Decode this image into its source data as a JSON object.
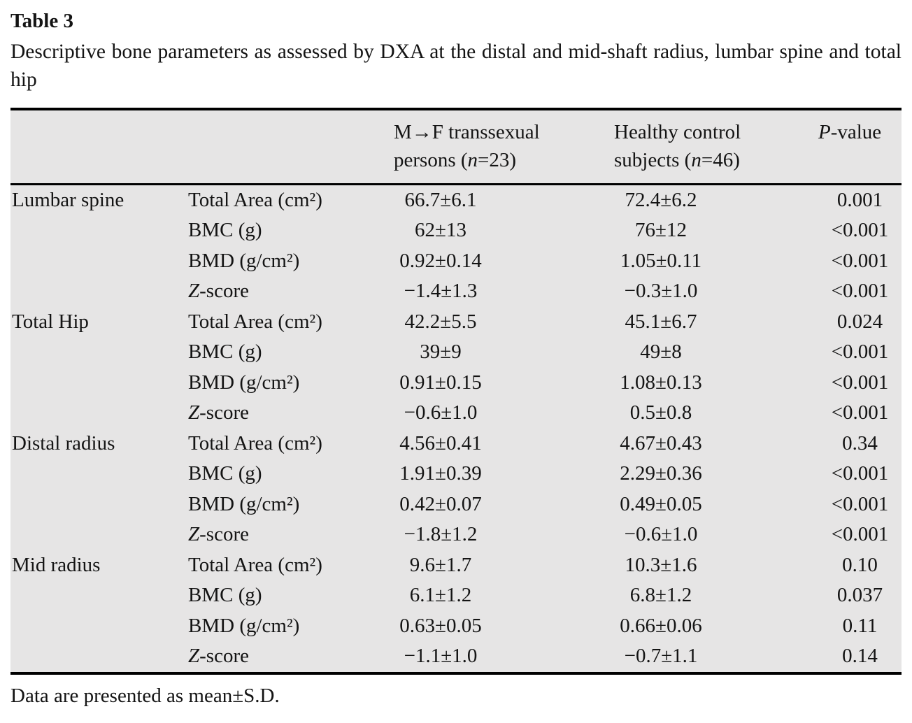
{
  "title": "Table 3",
  "caption": "Descriptive bone parameters as assessed by DXA at the distal and mid-shaft radius, lumbar spine and total hip",
  "footnote": "Data are presented as mean±S.D.",
  "colors": {
    "table_background": "#e6e5e5",
    "rule": "#000000",
    "text": "#141414"
  },
  "table": {
    "header": {
      "group1": {
        "line1": "M→F transsexual",
        "line2_pre": "persons (",
        "n": "n",
        "line2_post": "=23)"
      },
      "group2": {
        "line1": "Healthy control",
        "line2_pre": "subjects (",
        "n": "n",
        "line2_post": "=46)"
      },
      "pvalue_italic": "P",
      "pvalue_rest": "-value"
    },
    "rows": [
      {
        "region": "Lumbar spine",
        "param_italic": "",
        "param": "Total Area (cm²)",
        "group1": "66.7±6.1",
        "group2": "72.4±6.2",
        "pvalue": "0.001"
      },
      {
        "region": "",
        "param_italic": "",
        "param": "BMC (g)",
        "group1": "62±13",
        "group2": "76±12",
        "pvalue": "<0.001"
      },
      {
        "region": "",
        "param_italic": "",
        "param": "BMD (g/cm²)",
        "group1": "0.92±0.14",
        "group2": "1.05±0.11",
        "pvalue": "<0.001"
      },
      {
        "region": "",
        "param_italic": "Z",
        "param": "-score",
        "group1": "−1.4±1.3",
        "group2": "−0.3±1.0",
        "pvalue": "<0.001"
      },
      {
        "region": "Total Hip",
        "param_italic": "",
        "param": "Total Area (cm²)",
        "group1": "42.2±5.5",
        "group2": "45.1±6.7",
        "pvalue": "0.024"
      },
      {
        "region": "",
        "param_italic": "",
        "param": "BMC (g)",
        "group1": "39±9",
        "group2": "49±8",
        "pvalue": "<0.001"
      },
      {
        "region": "",
        "param_italic": "",
        "param": "BMD (g/cm²)",
        "group1": "0.91±0.15",
        "group2": "1.08±0.13",
        "pvalue": "<0.001"
      },
      {
        "region": "",
        "param_italic": "Z",
        "param": "-score",
        "group1": "−0.6±1.0",
        "group2": "0.5±0.8",
        "pvalue": "<0.001"
      },
      {
        "region": "Distal radius",
        "param_italic": "",
        "param": "Total Area (cm²)",
        "group1": "4.56±0.41",
        "group2": "4.67±0.43",
        "pvalue": "0.34"
      },
      {
        "region": "",
        "param_italic": "",
        "param": "BMC (g)",
        "group1": "1.91±0.39",
        "group2": "2.29±0.36",
        "pvalue": "<0.001"
      },
      {
        "region": "",
        "param_italic": "",
        "param": "BMD (g/cm²)",
        "group1": "0.42±0.07",
        "group2": "0.49±0.05",
        "pvalue": "<0.001"
      },
      {
        "region": "",
        "param_italic": "Z",
        "param": "-score",
        "group1": "−1.8±1.2",
        "group2": "−0.6±1.0",
        "pvalue": "<0.001"
      },
      {
        "region": "Mid radius",
        "param_italic": "",
        "param": "Total Area (cm²)",
        "group1": "9.6±1.7",
        "group2": "10.3±1.6",
        "pvalue": "0.10"
      },
      {
        "region": "",
        "param_italic": "",
        "param": "BMC (g)",
        "group1": "6.1±1.2",
        "group2": "6.8±1.2",
        "pvalue": "0.037"
      },
      {
        "region": "",
        "param_italic": "",
        "param": "BMD (g/cm²)",
        "group1": "0.63±0.05",
        "group2": "0.66±0.06",
        "pvalue": "0.11"
      },
      {
        "region": "",
        "param_italic": "Z",
        "param": "-score",
        "group1": "−1.1±1.0",
        "group2": "−0.7±1.1",
        "pvalue": "0.14"
      }
    ]
  }
}
